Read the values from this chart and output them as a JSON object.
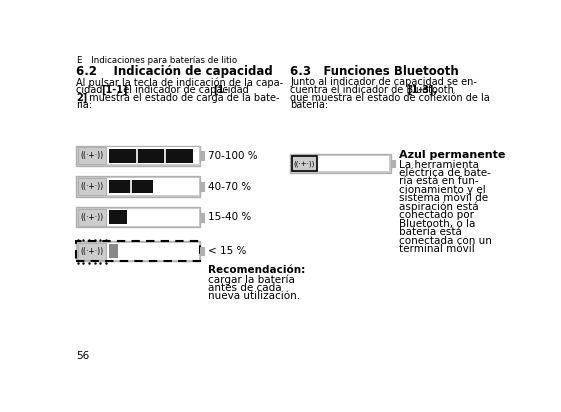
{
  "bg_color": "#ffffff",
  "text_color": "#000000",
  "header_e": "E",
  "header_rest": "   Indicaciones para baterías de litio",
  "s1_title": "6.2    Indicación de capacidad",
  "s1_p1": "Al pulsar la tecla de indicación de la capa-",
  "s1_p2a": "cidad ",
  "s1_p2b": "[1-1]",
  "s1_p2c": ", el indicador de capacidad ",
  "s1_p2d": "[1-",
  "s1_p3a": "2]",
  "s1_p3b": " muestra el estado de carga de la bate-",
  "s1_p4": "ría:",
  "s2_title": "6.3   Funciones Bluetooth",
  "s2_p1": "Junto al indicador de capacidad se en-",
  "s2_p2a": "cuentra el indicador de Bluetooth ",
  "s2_p2b": "[1-3],",
  "s2_p3": "que muestra el estado de conexión de la",
  "s2_p4": "batería:",
  "labels": [
    "70-100 %",
    "40-70 %",
    "15-40 %",
    "< 15 %"
  ],
  "fills": [
    0.95,
    0.5,
    0.2,
    0.1
  ],
  "bt_bold": "Azul permanente",
  "bt_body_lines": [
    "La herramienta",
    "eléctrica de bate-",
    "ría está en fun-",
    "cionamiento y el",
    "sistema móvil de",
    "aspiración está",
    "conectado por",
    "Bluetooth, o la",
    "batería está",
    "conectada con un",
    "terminal móvil"
  ],
  "rec_bold": "Recomendación:",
  "rec_body_lines": [
    "cargar la batería",
    "antes de cada",
    "nueva utilización."
  ],
  "page": "56",
  "dark_fill": "#111111",
  "gray_fill": "#888888",
  "light_gray": "#cccccc",
  "mid_gray": "#b0b0b0",
  "white": "#ffffff"
}
